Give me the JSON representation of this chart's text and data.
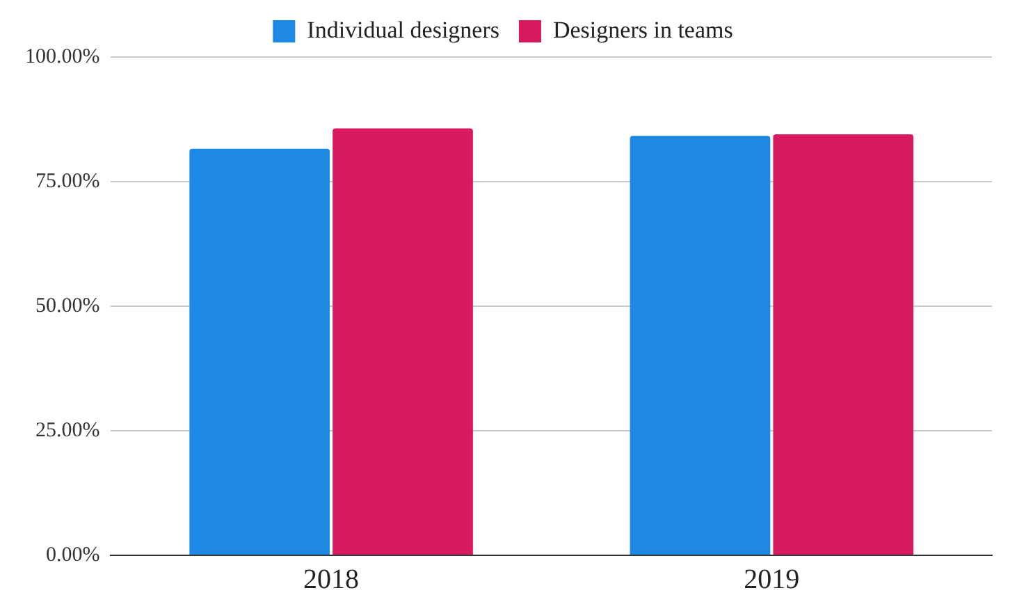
{
  "chart_data": {
    "type": "bar",
    "categories": [
      "2018",
      "2019"
    ],
    "series": [
      {
        "name": "Individual designers",
        "color": "#1e88e5",
        "values": [
          81.6,
          84.2
        ]
      },
      {
        "name": "Designers in teams",
        "color": "#d81b60",
        "values": [
          85.7,
          84.5
        ]
      }
    ],
    "ylim": [
      0,
      100
    ],
    "yticks": [
      {
        "value": 0,
        "label": "0.00%"
      },
      {
        "value": 25,
        "label": "25.00%"
      },
      {
        "value": 50,
        "label": "50.00%"
      },
      {
        "value": 75,
        "label": "75.00%"
      },
      {
        "value": 100,
        "label": "100.00%"
      }
    ],
    "grid": "y",
    "legend": "top"
  }
}
